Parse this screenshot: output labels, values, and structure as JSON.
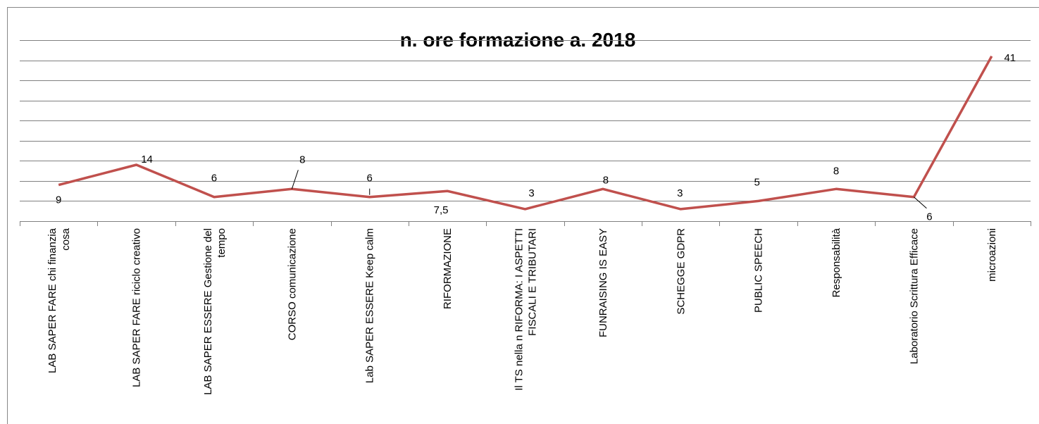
{
  "chart_data": {
    "type": "line",
    "title": "n. ore formazione  a. 2018",
    "categories": [
      "LAB SAPER FARE chi finanzia\ncosa",
      "LAB SAPER FARE riciclo creativo",
      "LAB SAPER ESSERE Gestione del\ntempo",
      "CORSO comunicazione",
      "Lab SAPER ESSERE Keep calm",
      "RIFORMAZIONE",
      "Il TS nella n RIFORMA: I ASPETTI\nFISCALI E TRIBUTARI",
      "FUNRAISING IS EASY",
      "SCHEGGE GDPR",
      "PUBLIC SPEECH",
      "Responsabilità",
      "Laboratorio Scrittura Efficace",
      "microazioni"
    ],
    "values": [
      9,
      14,
      6,
      8,
      6,
      7.5,
      3,
      8,
      3,
      5,
      8,
      6,
      41
    ],
    "value_labels": [
      "9",
      "14",
      "6",
      "8",
      "6",
      "7,5",
      "3",
      "8",
      "3",
      "5",
      "8",
      "6",
      "41"
    ],
    "color": "#c0504d",
    "ylim": [
      0,
      45
    ],
    "yticks": [
      0,
      5,
      10,
      15,
      20,
      25,
      30,
      35,
      40,
      45
    ],
    "grid": true
  }
}
